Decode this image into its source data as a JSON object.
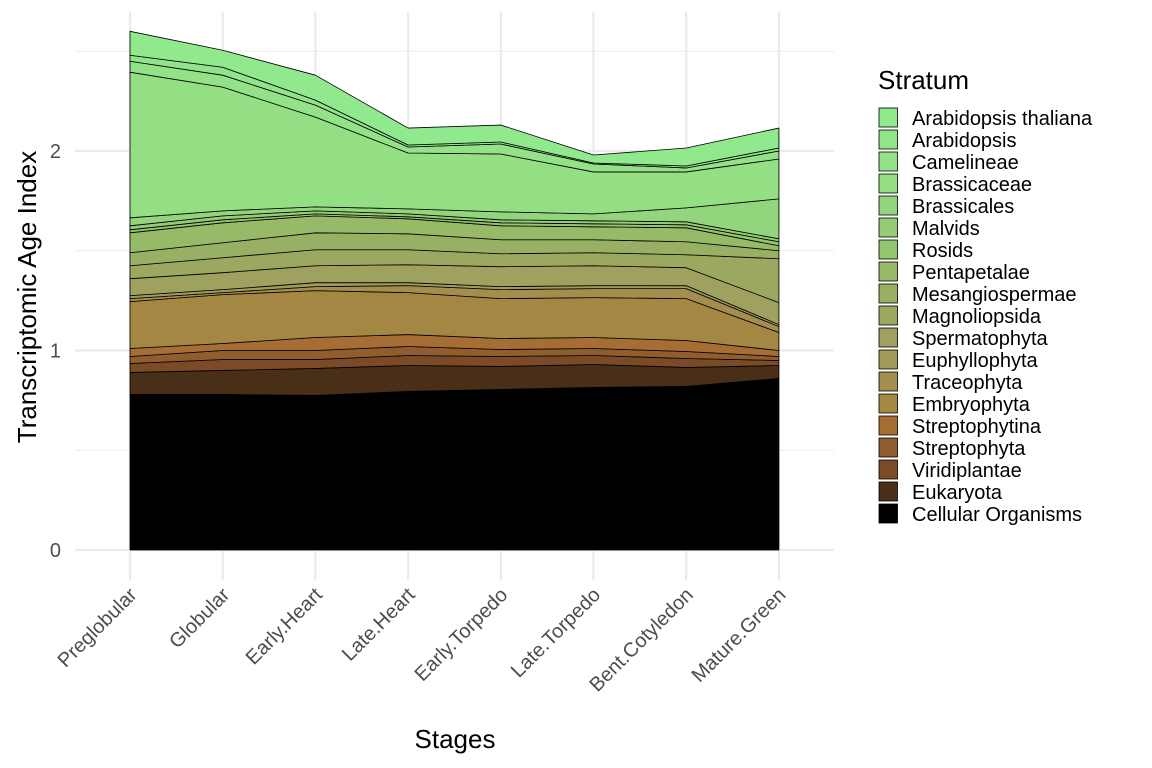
{
  "chart_data": {
    "type": "area",
    "stacked": true,
    "xlabel": "Stages",
    "ylabel": "Transcriptomic Age Index",
    "ylim": [
      0,
      2.6
    ],
    "yticks": [
      0,
      1,
      2
    ],
    "grid": true,
    "legend_title": "Stratum",
    "legend_position": "right",
    "categories": [
      "Preglobular",
      "Globular",
      "Early.Heart",
      "Late.Heart",
      "Early.Torpedo",
      "Late.Torpedo",
      "Bent.Cotyledon",
      "Mature.Green"
    ],
    "series": [
      {
        "name": "Cellular Organisms",
        "color": "#000000",
        "values": [
          0.78,
          0.78,
          0.775,
          0.795,
          0.805,
          0.815,
          0.82,
          0.86
        ]
      },
      {
        "name": "Eukaryota",
        "color": "#4A2F18",
        "values": [
          0.11,
          0.12,
          0.135,
          0.13,
          0.115,
          0.115,
          0.095,
          0.065
        ]
      },
      {
        "name": "Viridiplantae",
        "color": "#7A4B26",
        "values": [
          0.045,
          0.055,
          0.045,
          0.05,
          0.05,
          0.045,
          0.045,
          0.025
        ]
      },
      {
        "name": "Streptophyta",
        "color": "#915C2E",
        "values": [
          0.035,
          0.045,
          0.045,
          0.045,
          0.035,
          0.035,
          0.035,
          0.02
        ]
      },
      {
        "name": "Streptophytina",
        "color": "#A66D35",
        "values": [
          0.04,
          0.035,
          0.065,
          0.06,
          0.055,
          0.055,
          0.055,
          0.03
        ]
      },
      {
        "name": "Embryophyta",
        "color": "#A58744",
        "values": [
          0.235,
          0.245,
          0.235,
          0.21,
          0.2,
          0.2,
          0.21,
          0.09
        ]
      },
      {
        "name": "Traceophyta",
        "color": "#A48E4F",
        "values": [
          0.015,
          0.01,
          0.02,
          0.035,
          0.045,
          0.045,
          0.05,
          0.03
        ]
      },
      {
        "name": "Euphyllophyta",
        "color": "#A19A58",
        "values": [
          0.015,
          0.015,
          0.02,
          0.015,
          0.015,
          0.015,
          0.015,
          0.01
        ]
      },
      {
        "name": "Spermatophyta",
        "color": "#9FA15E",
        "values": [
          0.085,
          0.085,
          0.085,
          0.09,
          0.1,
          0.1,
          0.09,
          0.11
        ]
      },
      {
        "name": "Magnoliopsida",
        "color": "#9CA85F",
        "values": [
          0.065,
          0.075,
          0.08,
          0.075,
          0.065,
          0.065,
          0.065,
          0.22
        ]
      },
      {
        "name": "Mesangiospermae",
        "color": "#98B063",
        "values": [
          0.065,
          0.075,
          0.085,
          0.08,
          0.07,
          0.065,
          0.065,
          0.04
        ]
      },
      {
        "name": "Pentapetalae",
        "color": "#97BA68",
        "values": [
          0.1,
          0.1,
          0.085,
          0.075,
          0.07,
          0.065,
          0.07,
          0.025
        ]
      },
      {
        "name": "Rosids",
        "color": "#93C46E",
        "values": [
          0.015,
          0.015,
          0.01,
          0.01,
          0.015,
          0.015,
          0.015,
          0.02
        ]
      },
      {
        "name": "Malvids",
        "color": "#94CB74",
        "values": [
          0.02,
          0.02,
          0.015,
          0.015,
          0.015,
          0.015,
          0.015,
          0.015
        ]
      },
      {
        "name": "Brassicales",
        "color": "#92D57D",
        "values": [
          0.04,
          0.025,
          0.02,
          0.025,
          0.04,
          0.035,
          0.07,
          0.2
        ]
      },
      {
        "name": "Brassicaceae",
        "color": "#94DE83",
        "values": [
          0.73,
          0.62,
          0.45,
          0.28,
          0.29,
          0.21,
          0.18,
          0.2
        ]
      },
      {
        "name": "Camelineae",
        "color": "#93E287",
        "values": [
          0.055,
          0.06,
          0.06,
          0.03,
          0.05,
          0.04,
          0.02,
          0.04
        ]
      },
      {
        "name": "Arabidopsis",
        "color": "#92E48A",
        "values": [
          0.03,
          0.04,
          0.025,
          0.01,
          0.01,
          0.005,
          0.01,
          0.015
        ]
      },
      {
        "name": "Arabidopsis thaliana",
        "color": "#91E98E",
        "values": [
          0.12,
          0.085,
          0.125,
          0.085,
          0.085,
          0.04,
          0.09,
          0.1
        ]
      }
    ]
  }
}
